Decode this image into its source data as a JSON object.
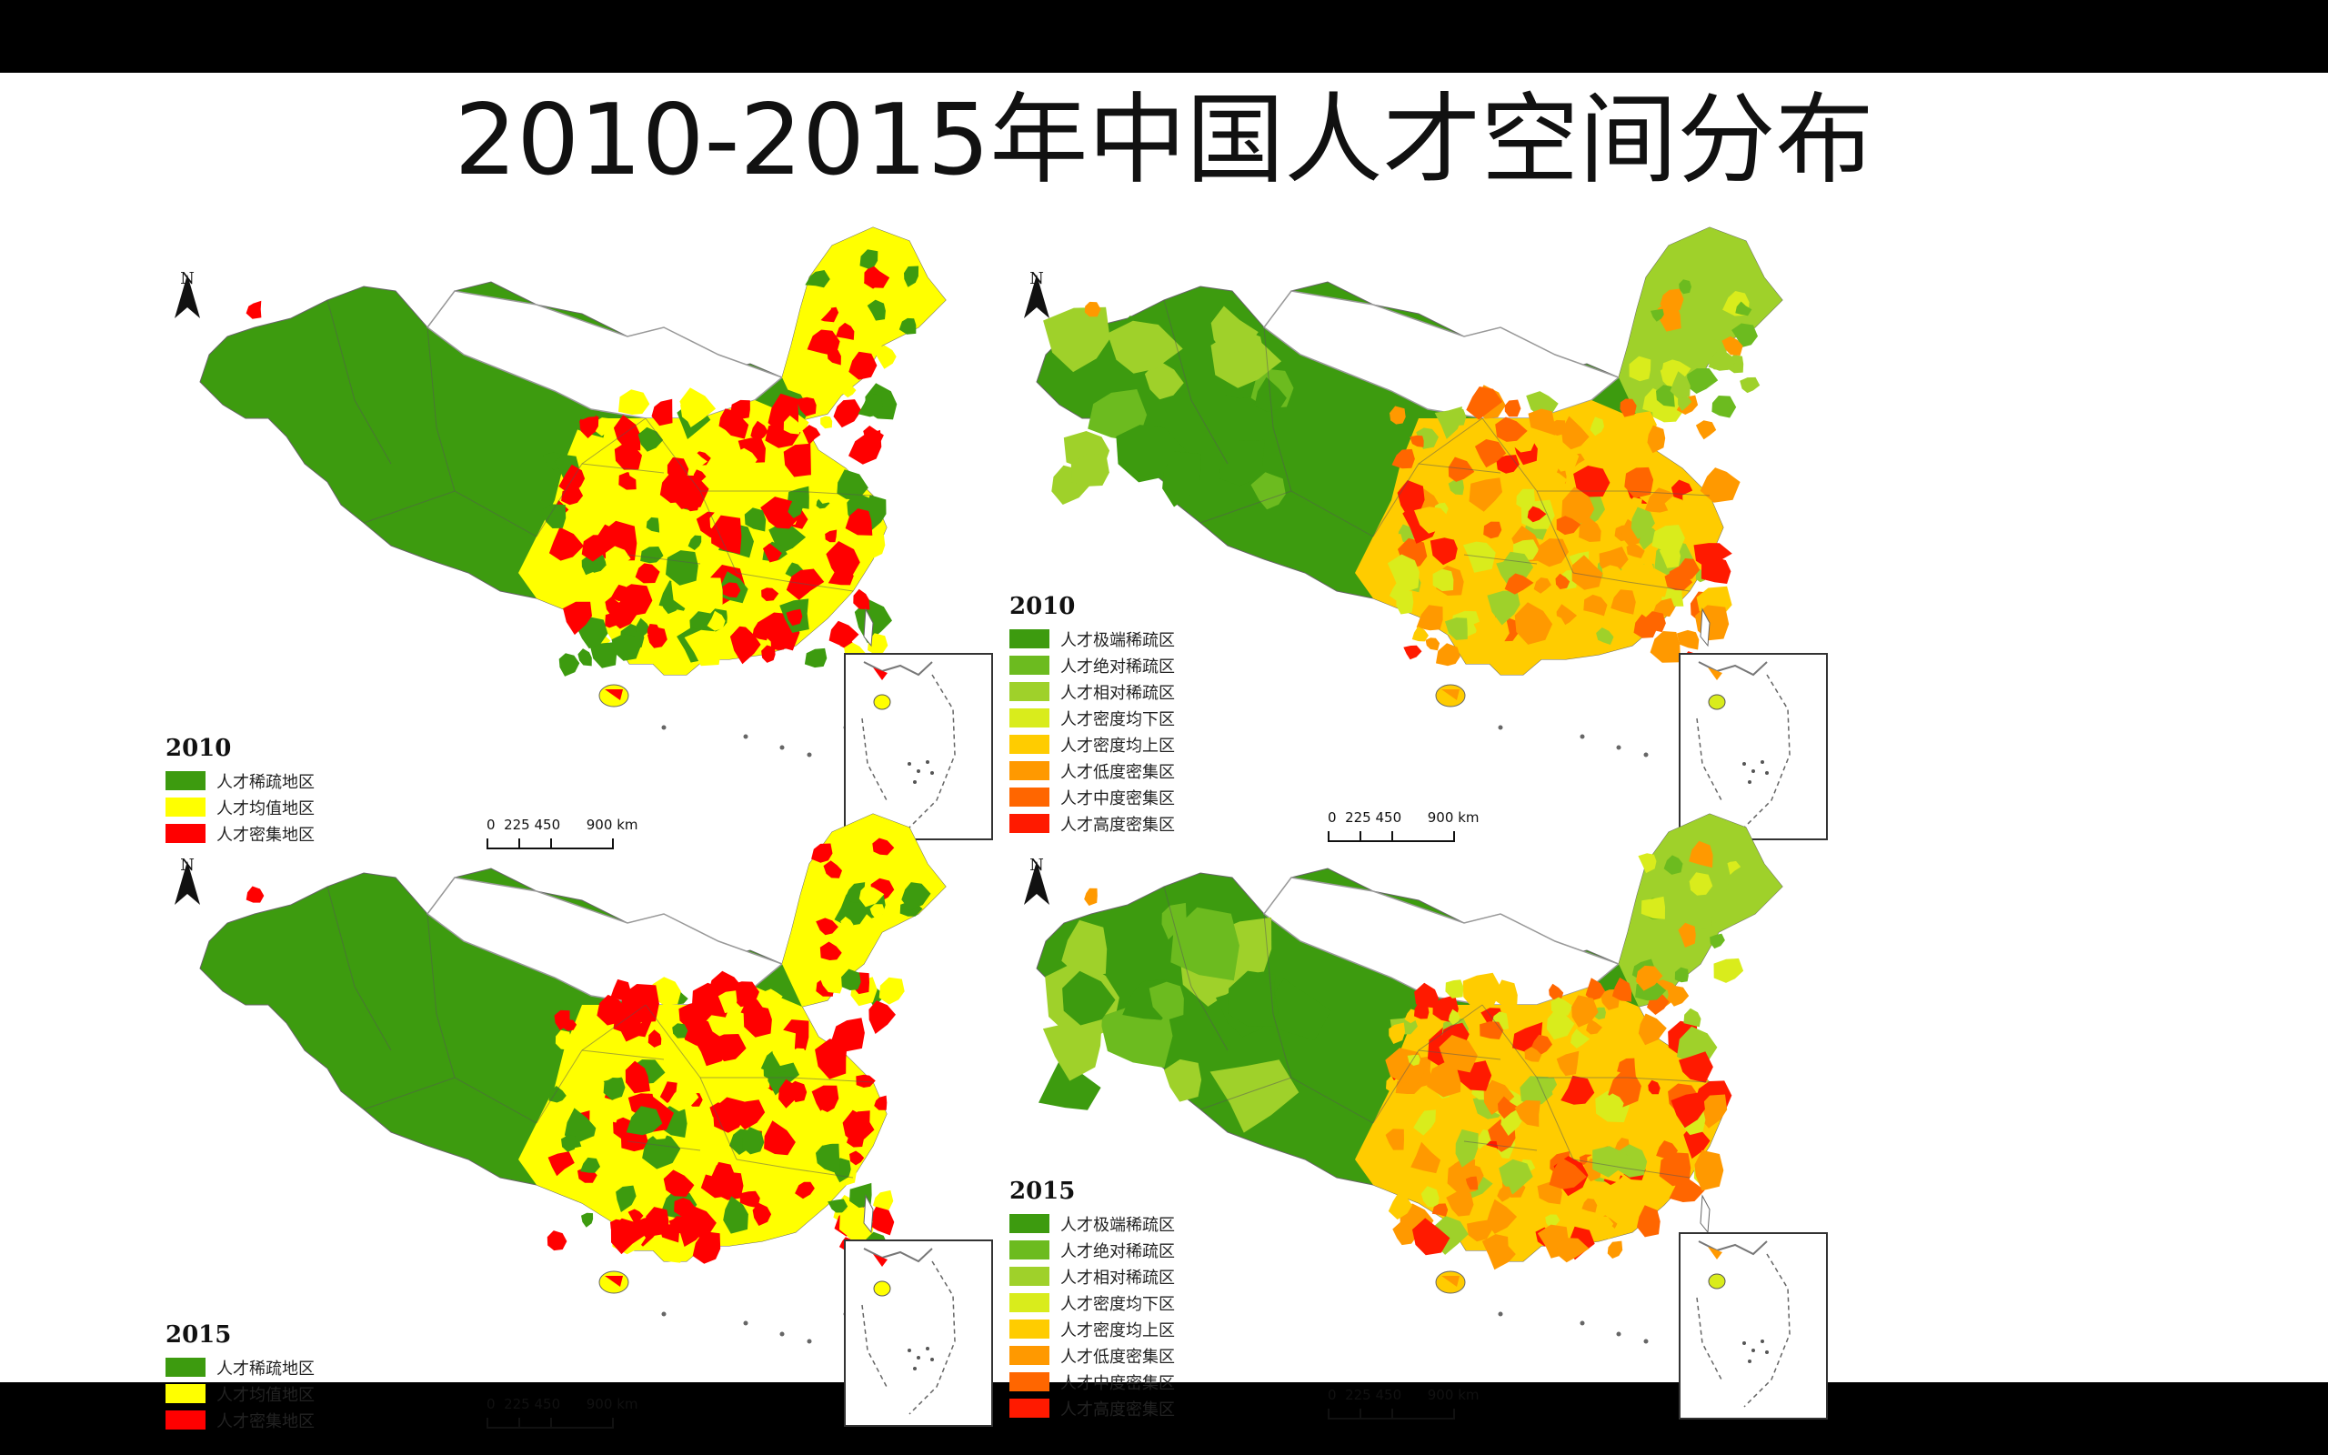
{
  "title": "2010-2015年中国人才空间分布",
  "north_label": "N",
  "scale": {
    "t0": "0",
    "t1": "225",
    "t2": "450",
    "t3": "900",
    "unit": "km"
  },
  "colors": {
    "green": "#3d9b0f",
    "yellow": "#ffff00",
    "red": "#ff0000",
    "c8": [
      "#3d9b0f",
      "#6cbb1f",
      "#9fd12a",
      "#d9ec1c",
      "#ffcc00",
      "#ff9900",
      "#ff6600",
      "#ff1a00"
    ]
  },
  "maps": [
    {
      "year": "2010",
      "scheme": "3",
      "legend": [
        "人才稀疏地区",
        "人才均值地区",
        "人才密集地区"
      ]
    },
    {
      "year": "2010",
      "scheme": "8",
      "legend": [
        "人才极端稀疏区",
        "人才绝对稀疏区",
        "人才相对稀疏区",
        "人才密度均下区",
        "人才密度均上区",
        "人才低度密集区",
        "人才中度密集区",
        "人才高度密集区"
      ]
    },
    {
      "year": "2015",
      "scheme": "3",
      "legend": [
        "人才稀疏地区",
        "人才均值地区",
        "人才密集地区"
      ]
    },
    {
      "year": "2015",
      "scheme": "8",
      "legend": [
        "人才极端稀疏区",
        "人才绝对稀疏区",
        "人才相对稀疏区",
        "人才密度均下区",
        "人才密度均上区",
        "人才低度密集区",
        "人才中度密集区",
        "人才高度密集区"
      ]
    }
  ]
}
